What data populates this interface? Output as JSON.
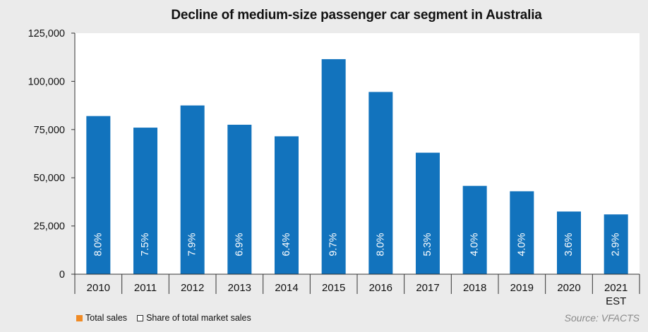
{
  "chart_data": {
    "type": "bar",
    "title": "Decline of medium-size passenger car segment in Australia",
    "categories": [
      "2010",
      "2011",
      "2012",
      "2013",
      "2014",
      "2015",
      "2016",
      "2017",
      "2018",
      "2019",
      "2020",
      "2021"
    ],
    "category_sublabels": [
      "",
      "",
      "",
      "",
      "",
      "",
      "",
      "",
      "",
      "",
      "",
      "EST"
    ],
    "series": [
      {
        "name": "Total sales",
        "values": [
          82000,
          76000,
          87500,
          77500,
          71500,
          111500,
          94500,
          63000,
          45800,
          43000,
          32500,
          31000
        ],
        "data_labels": [
          "8.0%",
          "7.5%",
          "7.9%",
          "6.9%",
          "6.4%",
          "9.7%",
          "8.0%",
          "5.3%",
          "4.0%",
          "4.0%",
          "3.6%",
          "2.9%"
        ]
      }
    ],
    "ylim": [
      0,
      125000
    ],
    "yticks": [
      "0",
      "25,000",
      "50,000",
      "75,000",
      "100,000",
      "125,000"
    ],
    "ytick_values": [
      0,
      25000,
      50000,
      75000,
      100000,
      125000
    ],
    "xlabel": "",
    "ylabel": "",
    "grid": false,
    "legend": {
      "placement": "bottom-left",
      "items": [
        "Total sales",
        "Share of total market sales"
      ]
    },
    "colors": {
      "bar": "#1273bd",
      "legend_total_sales": "#f08a24",
      "label_text": "#ffffff"
    },
    "source": "Source: VFACTS"
  }
}
